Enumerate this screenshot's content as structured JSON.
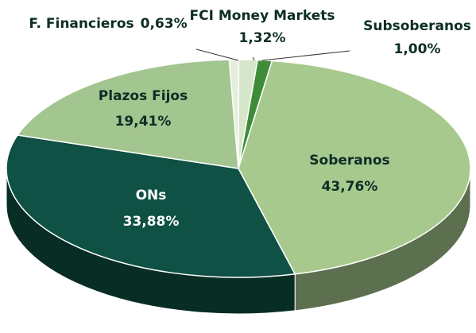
{
  "chart_data": {
    "type": "pie3d",
    "categories": [
      "FCI Money Markets",
      "Subsoberanos",
      "Soberanos",
      "ONs",
      "Plazos Fijos",
      "F. Financieros"
    ],
    "values": [
      1.32,
      1.0,
      43.76,
      33.88,
      19.41,
      0.63
    ],
    "value_labels": [
      "1,32%",
      "1,00%",
      "43,76%",
      "33,88%",
      "19,41%",
      "0,63%"
    ],
    "colors": [
      "#d6e6cb",
      "#3d8c37",
      "#a8c98e",
      "#0f5144",
      "#a3c58f",
      "#e3eedb"
    ]
  }
}
